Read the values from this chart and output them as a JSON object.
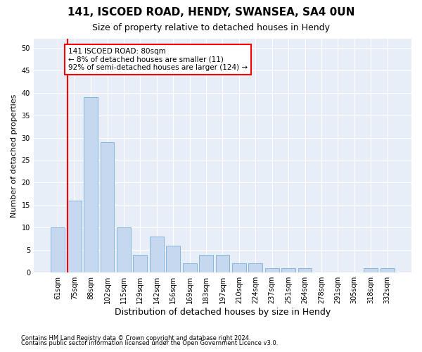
{
  "title": "141, ISCOED ROAD, HENDY, SWANSEA, SA4 0UN",
  "subtitle": "Size of property relative to detached houses in Hendy",
  "xlabel": "Distribution of detached houses by size in Hendy",
  "ylabel": "Number of detached properties",
  "footnote1": "Contains HM Land Registry data © Crown copyright and database right 2024.",
  "footnote2": "Contains public sector information licensed under the Open Government Licence v3.0.",
  "categories": [
    "61sqm",
    "75sqm",
    "88sqm",
    "102sqm",
    "115sqm",
    "129sqm",
    "142sqm",
    "156sqm",
    "169sqm",
    "183sqm",
    "197sqm",
    "210sqm",
    "224sqm",
    "237sqm",
    "251sqm",
    "264sqm",
    "278sqm",
    "291sqm",
    "305sqm",
    "318sqm",
    "332sqm"
  ],
  "values": [
    10,
    16,
    39,
    29,
    10,
    4,
    8,
    6,
    2,
    4,
    4,
    2,
    2,
    1,
    1,
    1,
    0,
    0,
    0,
    1,
    1
  ],
  "bar_color": "#c5d8f0",
  "bar_edge_color": "#7aafd4",
  "annotation_line1": "141 ISCOED ROAD: 80sqm",
  "annotation_line2": "← 8% of detached houses are smaller (11)",
  "annotation_line3": "92% of semi-detached houses are larger (124) →",
  "red_line_bar_index": 1,
  "ylim": [
    0,
    52
  ],
  "yticks": [
    0,
    5,
    10,
    15,
    20,
    25,
    30,
    35,
    40,
    45,
    50
  ],
  "bg_color": "#ffffff",
  "plot_bg_color": "#e8eef8",
  "grid_color": "#ffffff",
  "title_fontsize": 11,
  "subtitle_fontsize": 9,
  "xlabel_fontsize": 9,
  "ylabel_fontsize": 8,
  "tick_fontsize": 7,
  "annot_fontsize": 7.5
}
